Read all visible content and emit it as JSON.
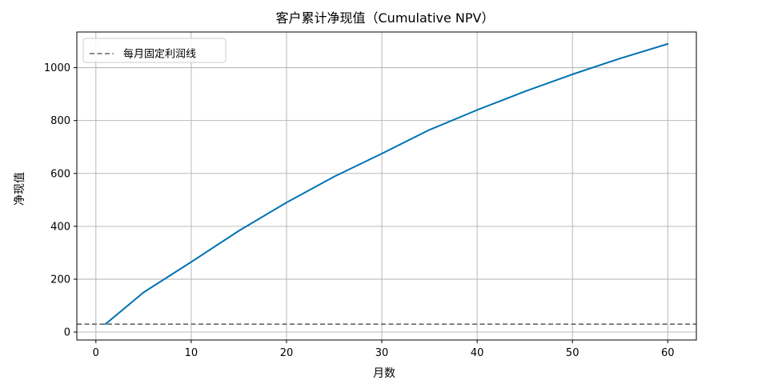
{
  "chart_data": {
    "type": "line",
    "title": "客户累计净现值（Cumulative NPV）",
    "xlabel": "月数",
    "ylabel": "净现值",
    "xlim": [
      -2,
      63
    ],
    "ylim": [
      -30,
      1135
    ],
    "x_ticks": [
      0,
      10,
      20,
      30,
      40,
      50,
      60
    ],
    "y_ticks": [
      0,
      200,
      400,
      600,
      800,
      1000
    ],
    "grid": true,
    "legend_position": "upper-left",
    "series": [
      {
        "name": "",
        "style": "solid",
        "color": "#0072B2",
        "x": [
          1,
          5,
          10,
          15,
          20,
          25,
          30,
          35,
          40,
          45,
          50,
          55,
          60
        ],
        "y": [
          30,
          150,
          265,
          383,
          490,
          588,
          675,
          765,
          840,
          910,
          975,
          1035,
          1090
        ]
      }
    ],
    "reference_lines": [
      {
        "name": "每月固定利润线",
        "orientation": "horizontal",
        "y": 30,
        "style": "dashed",
        "color": "#666666"
      }
    ]
  }
}
